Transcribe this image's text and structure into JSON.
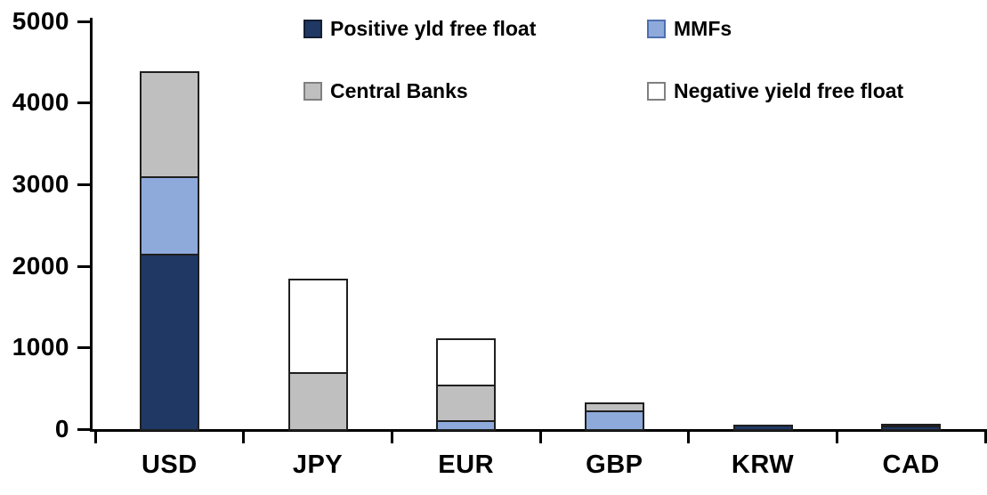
{
  "chart_data": {
    "type": "bar",
    "stacked": true,
    "title": "",
    "xlabel": "",
    "ylabel": "",
    "categories": [
      "USD",
      "JPY",
      "EUR",
      "GBP",
      "KRW",
      "CAD"
    ],
    "series": [
      {
        "name": "Positive yld free float",
        "color": "#1F3864",
        "marker_border": "#141f33",
        "values": [
          2150,
          0,
          0,
          0,
          50,
          45
        ]
      },
      {
        "name": "MMFs",
        "color": "#8EAADB",
        "marker_border": "#4f6fb0",
        "values": [
          950,
          0,
          110,
          230,
          0,
          0
        ]
      },
      {
        "name": "Central Banks",
        "color": "#BFBFBF",
        "marker_border": "#808080",
        "values": [
          1280,
          700,
          435,
          95,
          0,
          25
        ]
      },
      {
        "name": "Negative yield free float",
        "color": "#FFFFFF",
        "marker_border": "#808080",
        "values": [
          0,
          1140,
          565,
          0,
          0,
          0
        ]
      }
    ],
    "totals": [
      4380,
      1840,
      1110,
      325,
      50,
      70
    ],
    "ylim": [
      0,
      5000
    ],
    "ytick_step": 1000,
    "yticks": [
      "0",
      "1000",
      "2000",
      "3000",
      "4000",
      "5000"
    ],
    "grid": false,
    "legend_position": "top",
    "axis_color": "#000000",
    "bar_border_color": "#1f1f1f"
  }
}
